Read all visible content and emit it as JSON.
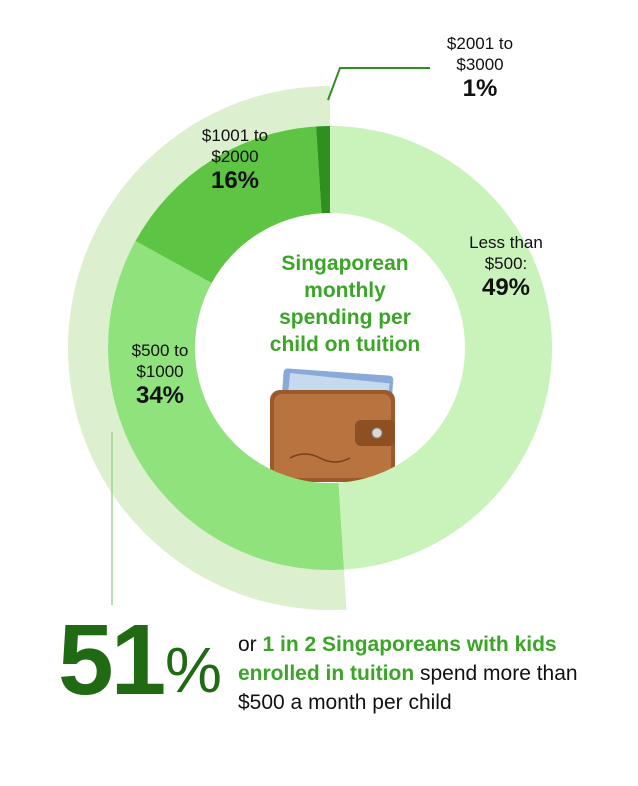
{
  "chart_data": {
    "type": "donut",
    "title": "Singaporean monthly spending per child on tuition",
    "categories": [
      "Less than $500:",
      "$500 to $1000",
      "$1001 to $2000",
      "$2001 to $3000"
    ],
    "values": [
      49,
      34,
      16,
      1
    ],
    "value_labels": [
      "49%",
      "34%",
      "16%",
      "1%"
    ],
    "colors": [
      "#c9f3ba",
      "#8fe27c",
      "#5ec443",
      "#2f901f"
    ],
    "callout": {
      "value": 51,
      "unit": "%",
      "color": "#dcefcf",
      "text": [
        {
          "text": "or ",
          "bold": false
        },
        {
          "text": "1 in 2 Singaporeans with kids enrolled in tuition",
          "bold": true
        },
        {
          "text": " spend more than $500 a month per child",
          "bold": false
        }
      ]
    }
  }
}
